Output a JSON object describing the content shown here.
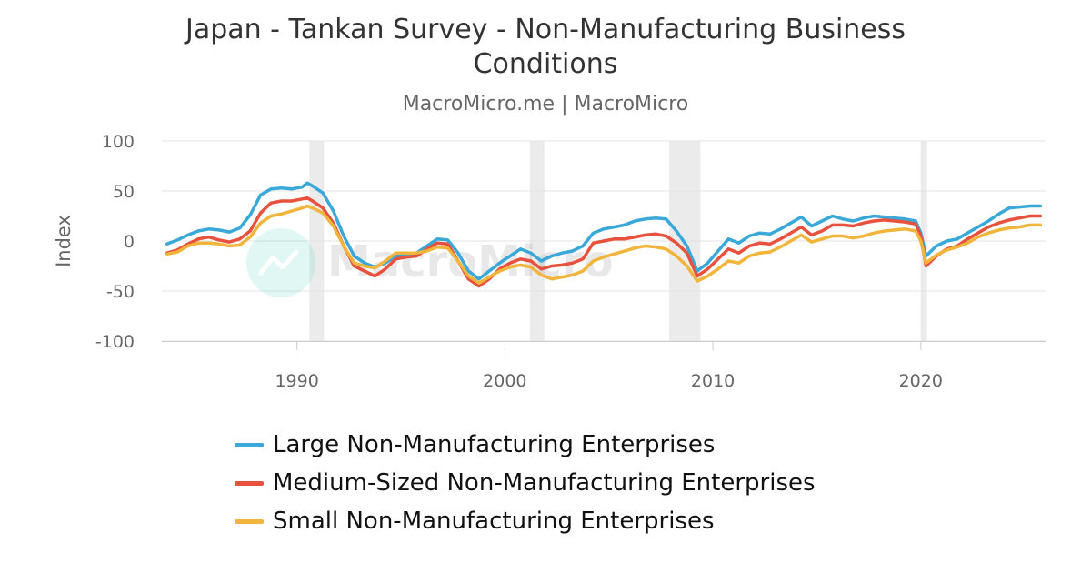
{
  "chart_data": {
    "type": "line",
    "title": "Japan - Tankan Survey - Non-Manufacturing Business Conditions",
    "subtitle": "MacroMicro.me | MacroMicro",
    "ylabel": "Index",
    "watermark": "MacroMicro",
    "ylim": [
      -100,
      100
    ],
    "yticks": [
      100,
      50,
      0,
      -50,
      -100
    ],
    "xlim": [
      1983.5,
      2026
    ],
    "xticks": [
      1990,
      2000,
      2010,
      2020
    ],
    "grid": true,
    "legend_position": "bottom",
    "recessions": [
      [
        1990.6,
        1991.3
      ],
      [
        2001.2,
        2001.9
      ],
      [
        2007.9,
        2009.4
      ],
      [
        2020.0,
        2020.3
      ]
    ],
    "series": [
      {
        "name": "Large Non-Manufacturing Enterprises",
        "color": "#3aa8d8",
        "points": [
          [
            1983.75,
            -3
          ],
          [
            1984.25,
            1
          ],
          [
            1984.75,
            6
          ],
          [
            1985.25,
            10
          ],
          [
            1985.75,
            12
          ],
          [
            1986.25,
            11
          ],
          [
            1986.75,
            9
          ],
          [
            1987.25,
            13
          ],
          [
            1987.75,
            26
          ],
          [
            1988.25,
            46
          ],
          [
            1988.75,
            52
          ],
          [
            1989.25,
            53
          ],
          [
            1989.75,
            52
          ],
          [
            1990.25,
            54
          ],
          [
            1990.5,
            58
          ],
          [
            1990.75,
            55
          ],
          [
            1991.25,
            48
          ],
          [
            1991.75,
            30
          ],
          [
            1992.25,
            5
          ],
          [
            1992.75,
            -15
          ],
          [
            1993.25,
            -22
          ],
          [
            1993.75,
            -26
          ],
          [
            1994.25,
            -22
          ],
          [
            1994.75,
            -15
          ],
          [
            1995.25,
            -14
          ],
          [
            1995.75,
            -12
          ],
          [
            1996.25,
            -5
          ],
          [
            1996.75,
            2
          ],
          [
            1997.25,
            1
          ],
          [
            1997.75,
            -12
          ],
          [
            1998.25,
            -30
          ],
          [
            1998.75,
            -38
          ],
          [
            1999.25,
            -30
          ],
          [
            1999.75,
            -22
          ],
          [
            2000.25,
            -15
          ],
          [
            2000.75,
            -8
          ],
          [
            2001.25,
            -12
          ],
          [
            2001.75,
            -20
          ],
          [
            2002.25,
            -15
          ],
          [
            2002.75,
            -12
          ],
          [
            2003.25,
            -10
          ],
          [
            2003.75,
            -5
          ],
          [
            2004.25,
            8
          ],
          [
            2004.75,
            12
          ],
          [
            2005.25,
            14
          ],
          [
            2005.75,
            16
          ],
          [
            2006.25,
            20
          ],
          [
            2006.75,
            22
          ],
          [
            2007.25,
            23
          ],
          [
            2007.75,
            22
          ],
          [
            2008.25,
            10
          ],
          [
            2008.75,
            -5
          ],
          [
            2009.25,
            -30
          ],
          [
            2009.75,
            -22
          ],
          [
            2010.25,
            -10
          ],
          [
            2010.75,
            2
          ],
          [
            2011.25,
            -2
          ],
          [
            2011.75,
            5
          ],
          [
            2012.25,
            8
          ],
          [
            2012.75,
            7
          ],
          [
            2013.25,
            12
          ],
          [
            2013.75,
            18
          ],
          [
            2014.25,
            24
          ],
          [
            2014.75,
            15
          ],
          [
            2015.25,
            20
          ],
          [
            2015.75,
            25
          ],
          [
            2016.25,
            22
          ],
          [
            2016.75,
            20
          ],
          [
            2017.25,
            23
          ],
          [
            2017.75,
            25
          ],
          [
            2018.25,
            24
          ],
          [
            2018.75,
            23
          ],
          [
            2019.25,
            22
          ],
          [
            2019.75,
            20
          ],
          [
            2020.0,
            8
          ],
          [
            2020.25,
            -15
          ],
          [
            2020.75,
            -5
          ],
          [
            2021.25,
            0
          ],
          [
            2021.75,
            2
          ],
          [
            2022.25,
            8
          ],
          [
            2022.75,
            14
          ],
          [
            2023.25,
            20
          ],
          [
            2023.75,
            27
          ],
          [
            2024.25,
            33
          ],
          [
            2024.75,
            34
          ],
          [
            2025.25,
            35
          ],
          [
            2025.75,
            35
          ]
        ]
      },
      {
        "name": "Medium-Sized Non-Manufacturing Enterprises",
        "color": "#e8513d",
        "points": [
          [
            1983.75,
            -12
          ],
          [
            1984.25,
            -9
          ],
          [
            1984.75,
            -3
          ],
          [
            1985.25,
            2
          ],
          [
            1985.75,
            4
          ],
          [
            1986.25,
            1
          ],
          [
            1986.75,
            -1
          ],
          [
            1987.25,
            2
          ],
          [
            1987.75,
            10
          ],
          [
            1988.25,
            28
          ],
          [
            1988.75,
            38
          ],
          [
            1989.25,
            40
          ],
          [
            1989.75,
            40
          ],
          [
            1990.25,
            42
          ],
          [
            1990.5,
            43
          ],
          [
            1990.75,
            40
          ],
          [
            1991.25,
            33
          ],
          [
            1991.75,
            18
          ],
          [
            1992.25,
            -5
          ],
          [
            1992.75,
            -25
          ],
          [
            1993.25,
            -30
          ],
          [
            1993.75,
            -35
          ],
          [
            1994.25,
            -28
          ],
          [
            1994.75,
            -18
          ],
          [
            1995.25,
            -16
          ],
          [
            1995.75,
            -15
          ],
          [
            1996.25,
            -8
          ],
          [
            1996.75,
            -2
          ],
          [
            1997.25,
            -3
          ],
          [
            1997.75,
            -20
          ],
          [
            1998.25,
            -38
          ],
          [
            1998.75,
            -45
          ],
          [
            1999.25,
            -38
          ],
          [
            1999.75,
            -28
          ],
          [
            2000.25,
            -22
          ],
          [
            2000.75,
            -18
          ],
          [
            2001.25,
            -20
          ],
          [
            2001.75,
            -28
          ],
          [
            2002.25,
            -25
          ],
          [
            2002.75,
            -24
          ],
          [
            2003.25,
            -22
          ],
          [
            2003.75,
            -18
          ],
          [
            2004.25,
            -2
          ],
          [
            2004.75,
            0
          ],
          [
            2005.25,
            2
          ],
          [
            2005.75,
            2
          ],
          [
            2006.25,
            4
          ],
          [
            2006.75,
            6
          ],
          [
            2007.25,
            7
          ],
          [
            2007.75,
            5
          ],
          [
            2008.25,
            -2
          ],
          [
            2008.75,
            -12
          ],
          [
            2009.25,
            -35
          ],
          [
            2009.75,
            -28
          ],
          [
            2010.25,
            -18
          ],
          [
            2010.75,
            -8
          ],
          [
            2011.25,
            -12
          ],
          [
            2011.75,
            -5
          ],
          [
            2012.25,
            -2
          ],
          [
            2012.75,
            -3
          ],
          [
            2013.25,
            2
          ],
          [
            2013.75,
            8
          ],
          [
            2014.25,
            14
          ],
          [
            2014.75,
            6
          ],
          [
            2015.25,
            10
          ],
          [
            2015.75,
            16
          ],
          [
            2016.25,
            16
          ],
          [
            2016.75,
            15
          ],
          [
            2017.25,
            18
          ],
          [
            2017.75,
            20
          ],
          [
            2018.25,
            21
          ],
          [
            2018.75,
            20
          ],
          [
            2019.25,
            19
          ],
          [
            2019.75,
            17
          ],
          [
            2020.0,
            5
          ],
          [
            2020.25,
            -25
          ],
          [
            2020.75,
            -15
          ],
          [
            2021.25,
            -8
          ],
          [
            2021.75,
            -5
          ],
          [
            2022.25,
            2
          ],
          [
            2022.75,
            8
          ],
          [
            2023.25,
            14
          ],
          [
            2023.75,
            18
          ],
          [
            2024.25,
            21
          ],
          [
            2024.75,
            23
          ],
          [
            2025.25,
            25
          ],
          [
            2025.75,
            25
          ]
        ]
      },
      {
        "name": "Small Non-Manufacturing Enterprises",
        "color": "#f2b53b",
        "points": [
          [
            1983.75,
            -13
          ],
          [
            1984.25,
            -11
          ],
          [
            1984.75,
            -5
          ],
          [
            1985.25,
            -2
          ],
          [
            1985.75,
            -2
          ],
          [
            1986.25,
            -3
          ],
          [
            1986.75,
            -5
          ],
          [
            1987.25,
            -4
          ],
          [
            1987.75,
            4
          ],
          [
            1988.25,
            18
          ],
          [
            1988.75,
            25
          ],
          [
            1989.25,
            27
          ],
          [
            1989.75,
            30
          ],
          [
            1990.25,
            33
          ],
          [
            1990.5,
            35
          ],
          [
            1990.75,
            33
          ],
          [
            1991.25,
            28
          ],
          [
            1991.75,
            15
          ],
          [
            1992.25,
            -5
          ],
          [
            1992.75,
            -22
          ],
          [
            1993.25,
            -25
          ],
          [
            1993.75,
            -27
          ],
          [
            1994.25,
            -20
          ],
          [
            1994.75,
            -12
          ],
          [
            1995.25,
            -12
          ],
          [
            1995.75,
            -12
          ],
          [
            1996.25,
            -10
          ],
          [
            1996.75,
            -6
          ],
          [
            1997.25,
            -7
          ],
          [
            1997.75,
            -20
          ],
          [
            1998.25,
            -35
          ],
          [
            1998.75,
            -42
          ],
          [
            1999.25,
            -36
          ],
          [
            1999.75,
            -30
          ],
          [
            2000.25,
            -26
          ],
          [
            2000.75,
            -24
          ],
          [
            2001.25,
            -26
          ],
          [
            2001.75,
            -34
          ],
          [
            2002.25,
            -38
          ],
          [
            2002.75,
            -36
          ],
          [
            2003.25,
            -34
          ],
          [
            2003.75,
            -30
          ],
          [
            2004.25,
            -20
          ],
          [
            2004.75,
            -16
          ],
          [
            2005.25,
            -13
          ],
          [
            2005.75,
            -10
          ],
          [
            2006.25,
            -7
          ],
          [
            2006.75,
            -5
          ],
          [
            2007.25,
            -6
          ],
          [
            2007.75,
            -8
          ],
          [
            2008.25,
            -15
          ],
          [
            2008.75,
            -25
          ],
          [
            2009.25,
            -40
          ],
          [
            2009.75,
            -35
          ],
          [
            2010.25,
            -28
          ],
          [
            2010.75,
            -20
          ],
          [
            2011.25,
            -22
          ],
          [
            2011.75,
            -15
          ],
          [
            2012.25,
            -12
          ],
          [
            2012.75,
            -11
          ],
          [
            2013.25,
            -6
          ],
          [
            2013.75,
            0
          ],
          [
            2014.25,
            6
          ],
          [
            2014.75,
            -1
          ],
          [
            2015.25,
            2
          ],
          [
            2015.75,
            5
          ],
          [
            2016.25,
            5
          ],
          [
            2016.75,
            3
          ],
          [
            2017.25,
            5
          ],
          [
            2017.75,
            8
          ],
          [
            2018.25,
            10
          ],
          [
            2018.75,
            11
          ],
          [
            2019.25,
            12
          ],
          [
            2019.75,
            10
          ],
          [
            2020.0,
            0
          ],
          [
            2020.25,
            -22
          ],
          [
            2020.75,
            -14
          ],
          [
            2021.25,
            -9
          ],
          [
            2021.75,
            -6
          ],
          [
            2022.25,
            -2
          ],
          [
            2022.75,
            4
          ],
          [
            2023.25,
            8
          ],
          [
            2023.75,
            11
          ],
          [
            2024.25,
            13
          ],
          [
            2024.75,
            14
          ],
          [
            2025.25,
            16
          ],
          [
            2025.75,
            16
          ]
        ]
      }
    ]
  }
}
